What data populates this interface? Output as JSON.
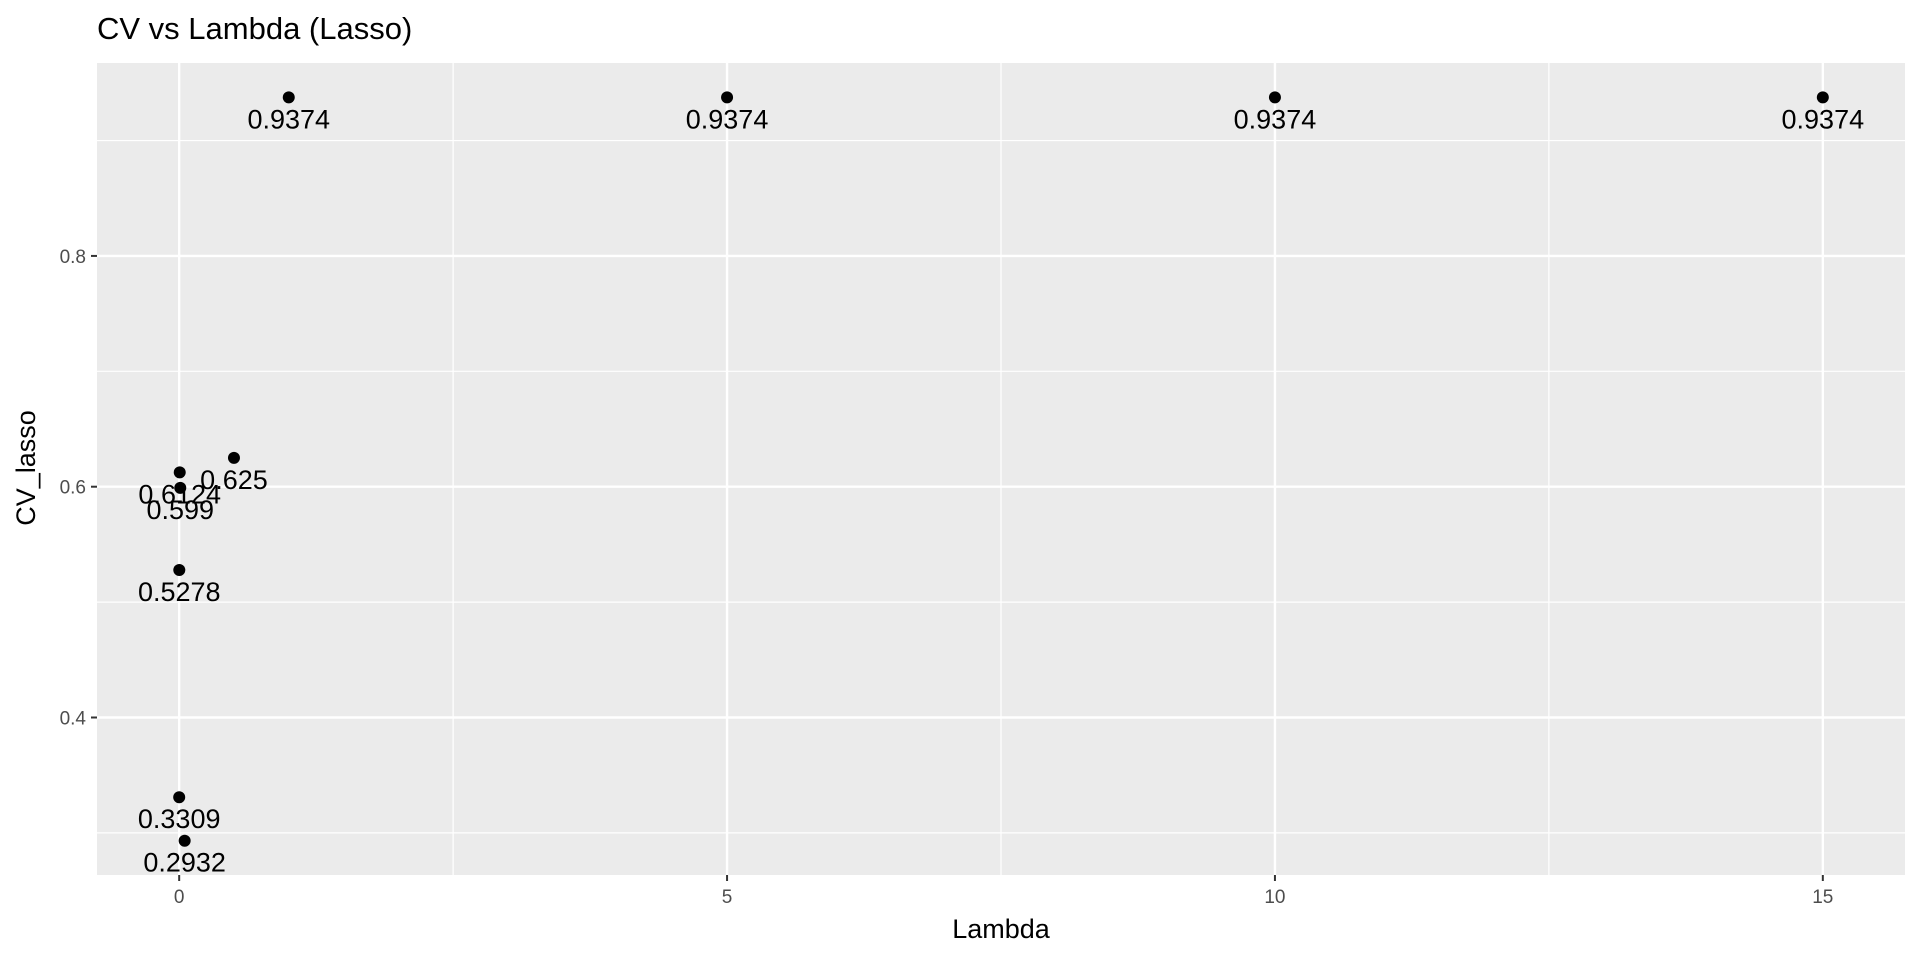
{
  "chart_data": {
    "type": "scatter",
    "title": "CV vs Lambda (Lasso)",
    "xlabel": "Lambda",
    "ylabel": "CV_lasso",
    "xlim": [
      -0.75,
      15.75
    ],
    "ylim": [
      0.2635,
      0.9672
    ],
    "x_ticks": [
      0,
      5,
      10,
      15
    ],
    "x_minor_ticks": [
      2.5,
      7.5,
      12.5
    ],
    "y_ticks": [
      0.4,
      0.6,
      0.8
    ],
    "y_minor_ticks": [
      0.3,
      0.5,
      0.7,
      0.9
    ],
    "grid": true,
    "legend": "none",
    "points": [
      {
        "x": 0.0001,
        "y": 0.3309,
        "label": "0.3309"
      },
      {
        "x": 0.05,
        "y": 0.2932,
        "label": "0.2932"
      },
      {
        "x": 0.001,
        "y": 0.5278,
        "label": "0.5278"
      },
      {
        "x": 0.01,
        "y": 0.599,
        "label": "0.599"
      },
      {
        "x": 0.005,
        "y": 0.6124,
        "label": "0.6124"
      },
      {
        "x": 0.5,
        "y": 0.625,
        "label": "0.625"
      },
      {
        "x": 1,
        "y": 0.9374,
        "label": "0.9374"
      },
      {
        "x": 5,
        "y": 0.9374,
        "label": "0.9374"
      },
      {
        "x": 10,
        "y": 0.9374,
        "label": "0.9374"
      },
      {
        "x": 15,
        "y": 0.9374,
        "label": "0.9374"
      }
    ]
  },
  "colors": {
    "panel_background": "#ebebeb",
    "grid_major": "#ffffff",
    "point": "#000000",
    "tick_text": "#4d4d4d",
    "tick_mark": "#333333"
  }
}
